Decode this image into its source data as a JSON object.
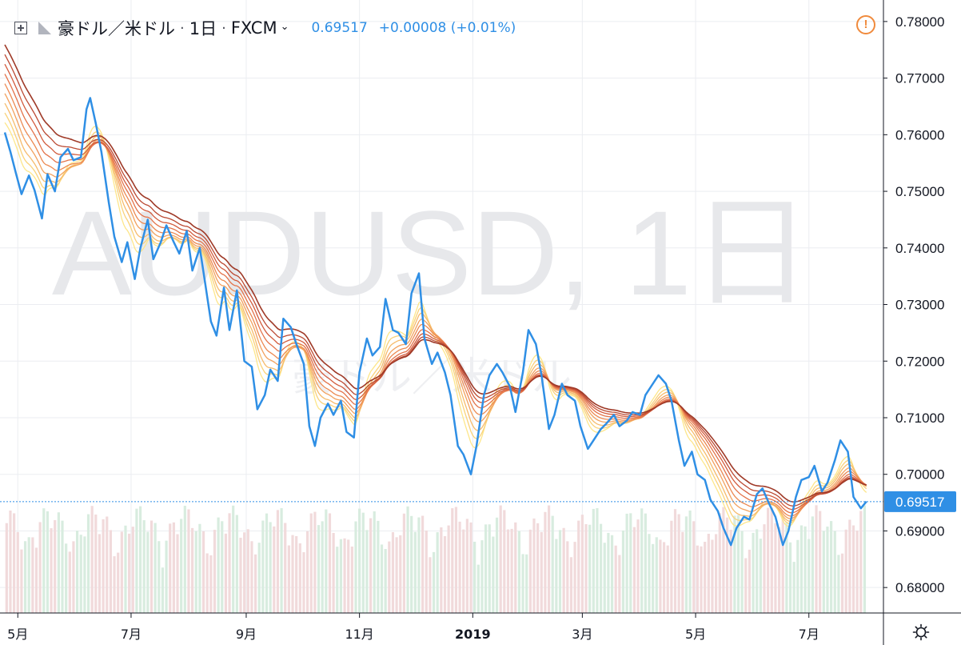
{
  "header": {
    "symbol": "豪ドル／米ドル",
    "separator": "·",
    "interval": "1日",
    "exchange": "FXCM",
    "price": "0.69517",
    "change": "+0.00008 (+0.01%)",
    "collapse_icon": "square-plus-icon",
    "flag_icon": "triangle-flag-icon",
    "alert_icon": "exclamation-circle-icon"
  },
  "watermark": {
    "symbol": "AUDUSD, 1日",
    "name": "豪ドル／米ドル"
  },
  "colors": {
    "price_line": "#2f8fe5",
    "volume_up": "#d8ecdf",
    "volume_down": "#f1dadb",
    "ribbon": [
      "#fde68a",
      "#f9d27a",
      "#f6bb6c",
      "#f2a15e",
      "#ec8a53",
      "#e3734a",
      "#d25c3e",
      "#bb4a33",
      "#9f3a28"
    ],
    "grid": "#ebedf1",
    "axis_text": "#131722",
    "current_price_bg": "#2f8fe5"
  },
  "chart_data": {
    "type": "line",
    "y_axis": {
      "ylim": [
        0.6755,
        0.7838
      ],
      "ticks": [
        "0.78000",
        "0.77000",
        "0.76000",
        "0.75000",
        "0.74000",
        "0.73000",
        "0.72000",
        "0.71000",
        "0.70000",
        "0.69000",
        "0.68000"
      ],
      "current_price_label": "0.69517"
    },
    "x_axis": {
      "ticks": [
        {
          "label": "5月",
          "date": "2018-05-01"
        },
        {
          "label": "7月",
          "date": "2018-07-01"
        },
        {
          "label": "9月",
          "date": "2018-09-01"
        },
        {
          "label": "11月",
          "date": "2018-11-01"
        },
        {
          "label": "2019",
          "date": "2019-01-01",
          "bold": true
        },
        {
          "label": "3月",
          "date": "2019-03-01"
        },
        {
          "label": "5月",
          "date": "2019-05-01"
        },
        {
          "label": "7月",
          "date": "2019-07-01"
        }
      ],
      "range": [
        "2018-04-24",
        "2019-08-08"
      ]
    },
    "series": [
      {
        "points": [
          [
            "2018-04-24",
            0.7604
          ],
          [
            "2018-04-27",
            0.757
          ],
          [
            "2018-04-30",
            0.7532
          ],
          [
            "2018-05-03",
            0.7495
          ],
          [
            "2018-05-07",
            0.7528
          ],
          [
            "2018-05-10",
            0.7502
          ],
          [
            "2018-05-14",
            0.7452
          ],
          [
            "2018-05-17",
            0.753
          ],
          [
            "2018-05-21",
            0.75
          ],
          [
            "2018-05-24",
            0.756
          ],
          [
            "2018-05-28",
            0.7575
          ],
          [
            "2018-05-31",
            0.7555
          ],
          [
            "2018-06-04",
            0.756
          ],
          [
            "2018-06-07",
            0.7645
          ],
          [
            "2018-06-09",
            0.7665
          ],
          [
            "2018-06-12",
            0.762
          ],
          [
            "2018-06-15",
            0.757
          ],
          [
            "2018-06-19",
            0.748
          ],
          [
            "2018-06-22",
            0.742
          ],
          [
            "2018-06-26",
            0.7375
          ],
          [
            "2018-06-29",
            0.741
          ],
          [
            "2018-07-03",
            0.7345
          ],
          [
            "2018-07-06",
            0.74
          ],
          [
            "2018-07-10",
            0.745
          ],
          [
            "2018-07-13",
            0.738
          ],
          [
            "2018-07-17",
            0.741
          ],
          [
            "2018-07-20",
            0.744
          ],
          [
            "2018-07-24",
            0.741
          ],
          [
            "2018-07-27",
            0.739
          ],
          [
            "2018-07-31",
            0.743
          ],
          [
            "2018-08-03",
            0.736
          ],
          [
            "2018-08-07",
            0.74
          ],
          [
            "2018-08-10",
            0.7335
          ],
          [
            "2018-08-13",
            0.727
          ],
          [
            "2018-08-16",
            0.7245
          ],
          [
            "2018-08-20",
            0.733
          ],
          [
            "2018-08-23",
            0.7255
          ],
          [
            "2018-08-27",
            0.7325
          ],
          [
            "2018-08-31",
            0.72
          ],
          [
            "2018-09-04",
            0.719
          ],
          [
            "2018-09-07",
            0.7115
          ],
          [
            "2018-09-11",
            0.714
          ],
          [
            "2018-09-14",
            0.7185
          ],
          [
            "2018-09-18",
            0.7165
          ],
          [
            "2018-09-21",
            0.7275
          ],
          [
            "2018-09-25",
            0.726
          ],
          [
            "2018-09-28",
            0.723
          ],
          [
            "2018-10-02",
            0.7195
          ],
          [
            "2018-10-05",
            0.7085
          ],
          [
            "2018-10-08",
            0.705
          ],
          [
            "2018-10-11",
            0.71
          ],
          [
            "2018-10-15",
            0.7125
          ],
          [
            "2018-10-18",
            0.7105
          ],
          [
            "2018-10-22",
            0.713
          ],
          [
            "2018-10-25",
            0.7075
          ],
          [
            "2018-10-29",
            0.7065
          ],
          [
            "2018-11-01",
            0.718
          ],
          [
            "2018-11-05",
            0.724
          ],
          [
            "2018-11-08",
            0.721
          ],
          [
            "2018-11-12",
            0.7225
          ],
          [
            "2018-11-15",
            0.731
          ],
          [
            "2018-11-19",
            0.7255
          ],
          [
            "2018-11-22",
            0.725
          ],
          [
            "2018-11-26",
            0.723
          ],
          [
            "2018-11-29",
            0.732
          ],
          [
            "2018-12-03",
            0.7355
          ],
          [
            "2018-12-06",
            0.724
          ],
          [
            "2018-12-10",
            0.7195
          ],
          [
            "2018-12-13",
            0.7215
          ],
          [
            "2018-12-17",
            0.718
          ],
          [
            "2018-12-20",
            0.714
          ],
          [
            "2018-12-24",
            0.705
          ],
          [
            "2018-12-27",
            0.7035
          ],
          [
            "2018-12-31",
            0.7
          ],
          [
            "2019-01-03",
            0.705
          ],
          [
            "2019-01-07",
            0.714
          ],
          [
            "2019-01-10",
            0.7175
          ],
          [
            "2019-01-14",
            0.7195
          ],
          [
            "2019-01-17",
            0.718
          ],
          [
            "2019-01-21",
            0.7155
          ],
          [
            "2019-01-24",
            0.711
          ],
          [
            "2019-01-28",
            0.718
          ],
          [
            "2019-01-31",
            0.7255
          ],
          [
            "2019-02-04",
            0.723
          ],
          [
            "2019-02-07",
            0.7175
          ],
          [
            "2019-02-11",
            0.708
          ],
          [
            "2019-02-14",
            0.7105
          ],
          [
            "2019-02-18",
            0.716
          ],
          [
            "2019-02-21",
            0.714
          ],
          [
            "2019-02-25",
            0.713
          ],
          [
            "2019-02-28",
            0.7085
          ],
          [
            "2019-03-04",
            0.7045
          ],
          [
            "2019-03-07",
            0.706
          ],
          [
            "2019-03-11",
            0.708
          ],
          [
            "2019-03-14",
            0.709
          ],
          [
            "2019-03-18",
            0.7105
          ],
          [
            "2019-03-21",
            0.7085
          ],
          [
            "2019-03-25",
            0.7095
          ],
          [
            "2019-03-28",
            0.711
          ],
          [
            "2019-04-01",
            0.7105
          ],
          [
            "2019-04-04",
            0.714
          ],
          [
            "2019-04-08",
            0.716
          ],
          [
            "2019-04-11",
            0.7175
          ],
          [
            "2019-04-15",
            0.716
          ],
          [
            "2019-04-18",
            0.713
          ],
          [
            "2019-04-22",
            0.706
          ],
          [
            "2019-04-25",
            0.7015
          ],
          [
            "2019-04-29",
            0.704
          ],
          [
            "2019-05-02",
            0.7
          ],
          [
            "2019-05-06",
            0.699
          ],
          [
            "2019-05-09",
            0.6955
          ],
          [
            "2019-05-13",
            0.6935
          ],
          [
            "2019-05-16",
            0.6905
          ],
          [
            "2019-05-20",
            0.6875
          ],
          [
            "2019-05-23",
            0.6905
          ],
          [
            "2019-05-27",
            0.6925
          ],
          [
            "2019-05-30",
            0.692
          ],
          [
            "2019-06-03",
            0.6965
          ],
          [
            "2019-06-06",
            0.6975
          ],
          [
            "2019-06-10",
            0.6945
          ],
          [
            "2019-06-13",
            0.6925
          ],
          [
            "2019-06-17",
            0.6875
          ],
          [
            "2019-06-20",
            0.69
          ],
          [
            "2019-06-24",
            0.696
          ],
          [
            "2019-06-27",
            0.699
          ],
          [
            "2019-07-01",
            0.6995
          ],
          [
            "2019-07-04",
            0.7015
          ],
          [
            "2019-07-08",
            0.697
          ],
          [
            "2019-07-11",
            0.6985
          ],
          [
            "2019-07-15",
            0.7025
          ],
          [
            "2019-07-18",
            0.706
          ],
          [
            "2019-07-22",
            0.704
          ],
          [
            "2019-07-25",
            0.696
          ],
          [
            "2019-07-29",
            0.694
          ],
          [
            "2019-08-01",
            0.6952
          ]
        ]
      }
    ],
    "grid": true,
    "legend": "none"
  }
}
